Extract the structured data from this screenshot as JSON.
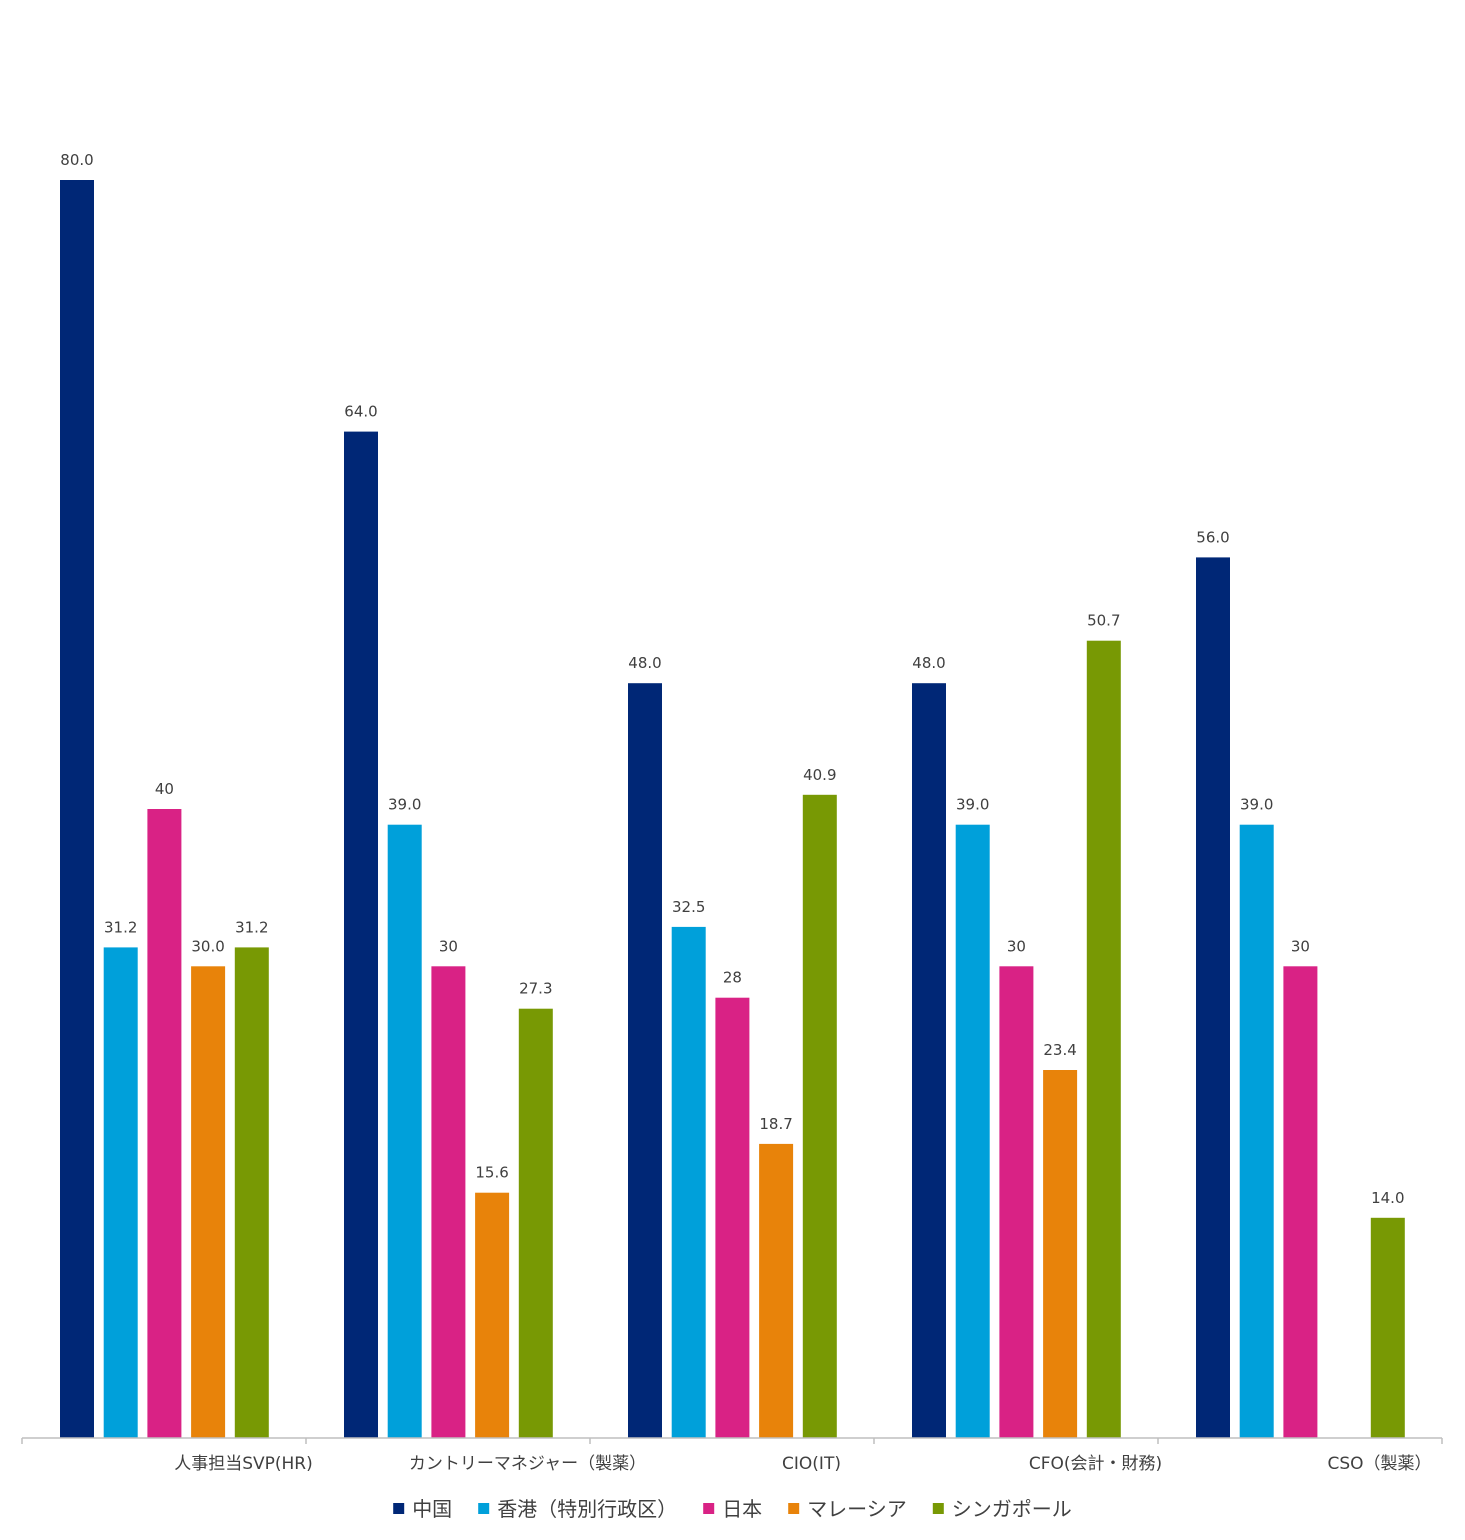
{
  "chart_data": {
    "type": "bar",
    "title": "",
    "xlabel": "",
    "ylabel": "",
    "ylim": [
      0,
      80
    ],
    "grid": false,
    "legend_position": "bottom",
    "categories": [
      "人事担当SVP(HR)",
      "カントリーマネジャー（製薬）",
      "CIO(IT)",
      "CFO(会計・財務)",
      "CSO（製薬）"
    ],
    "series": [
      {
        "name": "中国",
        "color": "#002776",
        "values": [
          80.0,
          64.0,
          48.0,
          48.0,
          56.0
        ],
        "labels": [
          "80.0",
          "64.0",
          "48.0",
          "48.0",
          "56.0"
        ]
      },
      {
        "name": "香港（特別行政区）",
        "color": "#00A0DA",
        "values": [
          31.2,
          39.0,
          32.5,
          39.0,
          39.0
        ],
        "labels": [
          "31.2",
          "39.0",
          "32.5",
          "39.0",
          "39.0"
        ]
      },
      {
        "name": "日本",
        "color": "#D92285",
        "values": [
          40,
          30,
          28,
          30,
          30
        ],
        "labels": [
          "40",
          "30",
          "28",
          "30",
          "30"
        ]
      },
      {
        "name": "マレーシア",
        "color": "#E8830A",
        "values": [
          30.0,
          15.6,
          18.7,
          23.4,
          null
        ],
        "labels": [
          "30.0",
          "15.6",
          "18.7",
          "23.4",
          null
        ]
      },
      {
        "name": "シンガポール",
        "color": "#789904",
        "values": [
          31.2,
          27.3,
          40.9,
          50.7,
          14.0
        ],
        "labels": [
          "31.2",
          "27.3",
          "40.9",
          "50.7",
          "14.0"
        ]
      }
    ]
  }
}
